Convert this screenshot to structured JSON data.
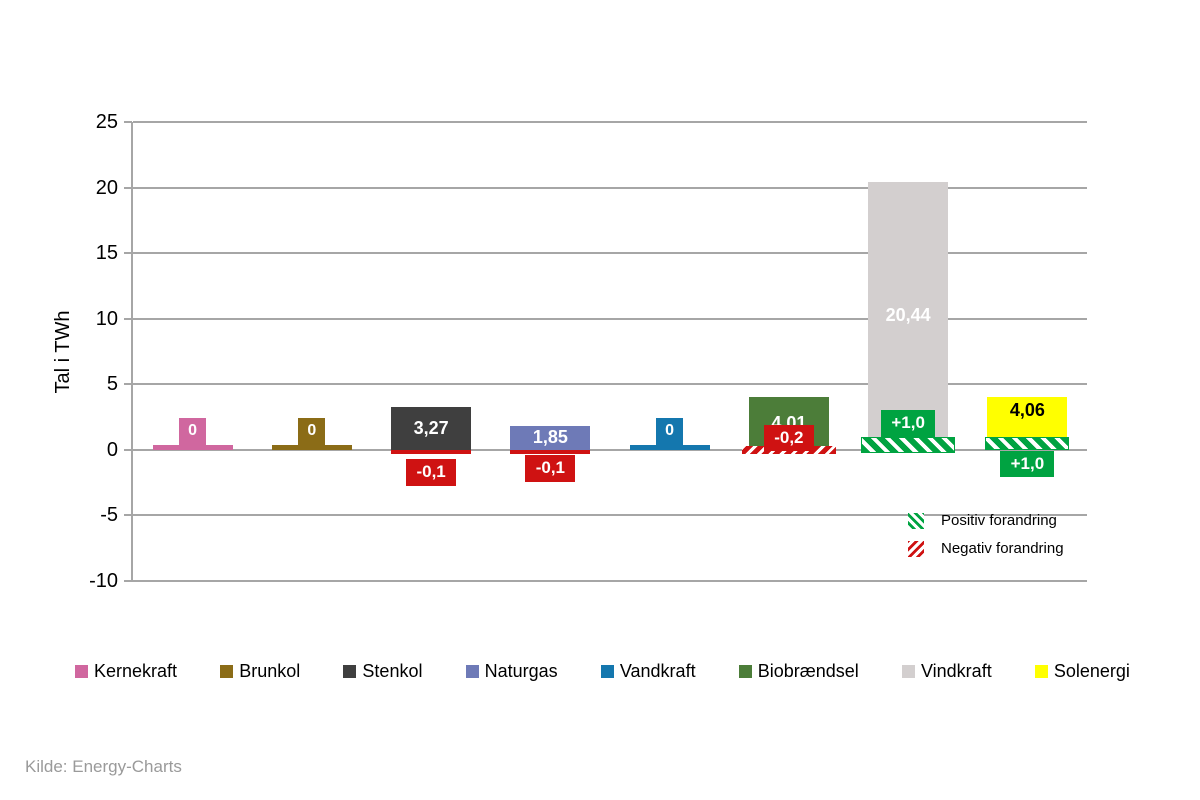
{
  "source": "Kilde: Energy-Charts",
  "change_legend": {
    "positive": "Positiv forandring",
    "negative": "Negativ forandring"
  },
  "colors": {
    "grid": "#a6a6a6",
    "positive": "#00a341",
    "negative": "#cf1212",
    "source_text": "#9a9a9a"
  },
  "chart_data": {
    "type": "bar",
    "title": "",
    "xlabel": "",
    "ylabel": "Tal i TWh",
    "ylim": [
      -10,
      25
    ],
    "yticks": [
      25,
      20,
      15,
      10,
      5,
      0,
      -5,
      -10
    ],
    "grid": true,
    "legend_position": "bottom",
    "categories": [
      "Kernekraft",
      "Brunkol",
      "Stenkol",
      "Naturgas",
      "Vandkraft",
      "Biobrændsel",
      "Vindkraft",
      "Solenergi"
    ],
    "series": [
      {
        "name": "Tal i TWh",
        "values": [
          0,
          0,
          3.27,
          1.85,
          0,
          4.01,
          20.44,
          4.06
        ]
      },
      {
        "name": "Forandring",
        "values": [
          0,
          0,
          -0.1,
          -0.1,
          0,
          -0.2,
          1.0,
          1.0
        ]
      }
    ],
    "bars": [
      {
        "name": "Kernekraft",
        "value": 0,
        "value_label": "0",
        "color": "#d0679f",
        "label_style": "box",
        "change": null
      },
      {
        "name": "Brunkol",
        "value": 0,
        "value_label": "0",
        "color": "#8b6c17",
        "label_style": "box",
        "change": null
      },
      {
        "name": "Stenkol",
        "value": 3.27,
        "value_label": "3,27",
        "color": "#3f3f3f",
        "label_style": "inside-white",
        "change": {
          "value": -0.1,
          "label": "-0,1",
          "direction": "negative",
          "pattern": "solid",
          "label_position": "below-axis",
          "label_offset": 5
        }
      },
      {
        "name": "Naturgas",
        "value": 1.85,
        "value_label": "1,85",
        "color": "#6e7ab7",
        "label_style": "inside-white",
        "change": {
          "value": -0.1,
          "label": "-0,1",
          "direction": "negative",
          "pattern": "solid",
          "label_position": "below-axis",
          "label_offset": 1
        }
      },
      {
        "name": "Vandkraft",
        "value": 0,
        "value_label": "0",
        "color": "#1477ae",
        "label_style": "box",
        "change": null
      },
      {
        "name": "Biobrændsel",
        "value": 4.01,
        "value_label": "4,01",
        "color": "#4c7d39",
        "label_style": "inside-white",
        "change": {
          "value": -0.2,
          "label": "-0,2",
          "direction": "negative",
          "pattern": "hatch",
          "label_position": "on-bar",
          "label_offset": 0
        }
      },
      {
        "name": "Vindkraft",
        "value": 20.44,
        "value_label": "20,44",
        "color": "#d3cfcf",
        "label_style": "inside-white",
        "change": {
          "value": 1.0,
          "label": "+1,0",
          "direction": "positive",
          "pattern": "hatch",
          "label_position": "above-hatch",
          "label_offset": 0
        }
      },
      {
        "name": "Solenergi",
        "value": 4.06,
        "value_label": "4,06",
        "color": "#ffff00",
        "label_style": "inside-black",
        "change": {
          "value": 1.0,
          "label": "+1,0",
          "direction": "positive",
          "pattern": "hatch",
          "label_position": "below-axis",
          "label_offset": 1
        }
      }
    ]
  }
}
